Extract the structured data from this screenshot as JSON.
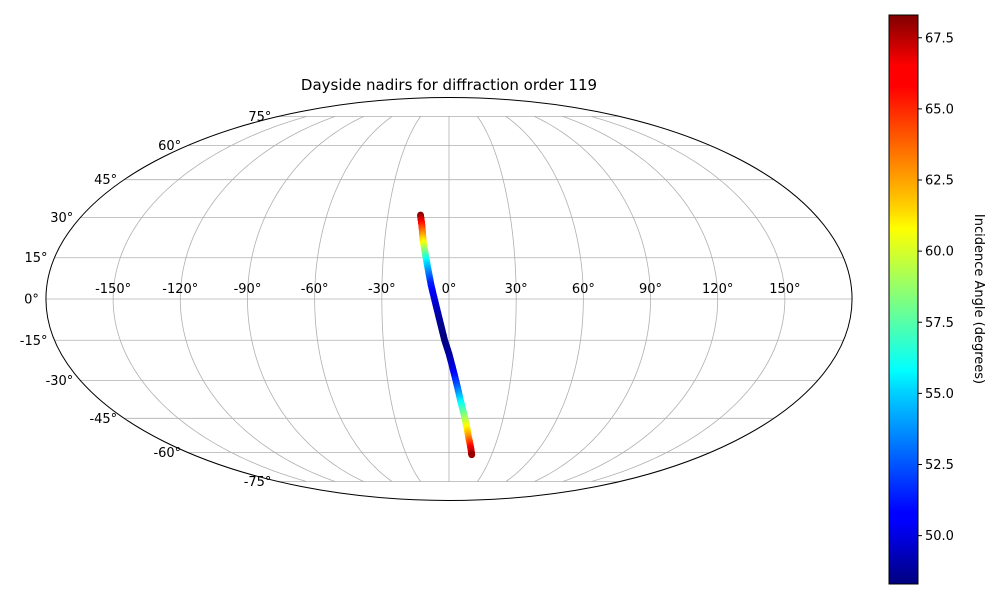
{
  "chart_data": {
    "type": "scatter",
    "projection": "mollweide",
    "title": "Dayside nadirs for diffraction order 119",
    "lon_ticks": [
      "-150°",
      "-120°",
      "-90°",
      "-60°",
      "-30°",
      "0°",
      "30°",
      "60°",
      "90°",
      "120°",
      "150°"
    ],
    "lat_ticks": [
      "75°",
      "60°",
      "45°",
      "30°",
      "15°",
      "0°",
      "-15°",
      "-30°",
      "-45°",
      "-60°",
      "-75°"
    ],
    "grid": true,
    "colorbar": {
      "label": "Incidence Angle (degrees)",
      "colormap": "jet",
      "range": [
        48.3,
        68.3
      ],
      "ticks": [
        "50.0",
        "52.5",
        "55.0",
        "57.5",
        "60.0",
        "62.5",
        "65.0",
        "67.5"
      ]
    },
    "series": [
      {
        "lon": [
          -14,
          -13.5,
          -13,
          -12.5,
          -12,
          -11,
          -10,
          -9,
          -8,
          -6.5,
          -5,
          -3.5,
          -2,
          0,
          2,
          4,
          6,
          8,
          10,
          12,
          14,
          15.5,
          16
        ],
        "lat": [
          31,
          29,
          27,
          24,
          21,
          17,
          13,
          9,
          5,
          0,
          -5,
          -10,
          -15,
          -20,
          -26,
          -32,
          -38,
          -43,
          -48,
          -53,
          -57,
          -60,
          -61
        ],
        "incidence": [
          68.3,
          66.8,
          65.3,
          63.3,
          61.3,
          58.3,
          55.3,
          53.3,
          51.3,
          50.3,
          49.3,
          48.6,
          48.3,
          48.8,
          50.3,
          52.3,
          55.3,
          57.8,
          60.3,
          62.8,
          65.3,
          66.8,
          67.8
        ]
      }
    ]
  }
}
